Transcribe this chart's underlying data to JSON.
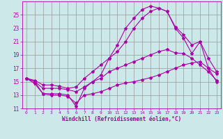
{
  "xlabel": "Windchill (Refroidissement éolien,°C)",
  "bg_color": "#cce8e8",
  "grid_color": "#999999",
  "line_color": "#aa00aa",
  "xlim": [
    -0.5,
    23.5
  ],
  "ylim": [
    11,
    27
  ],
  "yticks": [
    11,
    13,
    15,
    17,
    19,
    21,
    23,
    25
  ],
  "xticks": [
    0,
    1,
    2,
    3,
    4,
    5,
    6,
    7,
    8,
    9,
    10,
    11,
    12,
    13,
    14,
    15,
    16,
    17,
    18,
    19,
    20,
    21,
    22,
    23
  ],
  "hours": [
    0,
    1,
    2,
    3,
    4,
    5,
    6,
    7,
    8,
    9,
    10,
    11,
    12,
    13,
    14,
    15,
    16,
    17,
    18,
    19,
    20,
    21,
    22,
    23
  ],
  "temp_actual": [
    15.5,
    15.0,
    13.2,
    13.2,
    13.2,
    13.0,
    11.3,
    14.0,
    15.0,
    16.0,
    18.5,
    20.5,
    23.0,
    24.5,
    25.8,
    26.3,
    26.0,
    25.5,
    23.0,
    21.5,
    19.2,
    21.0,
    17.0,
    16.2
  ],
  "temp_feel_high": [
    15.5,
    15.2,
    14.5,
    14.5,
    14.3,
    14.0,
    14.2,
    15.5,
    16.5,
    17.5,
    18.5,
    19.5,
    21.0,
    23.0,
    24.5,
    25.5,
    26.0,
    25.5,
    23.2,
    22.0,
    20.5,
    21.0,
    18.5,
    16.5
  ],
  "temp_feel_mid": [
    15.5,
    15.0,
    14.0,
    14.0,
    14.0,
    13.8,
    13.5,
    14.2,
    15.0,
    15.5,
    16.5,
    17.0,
    17.5,
    18.0,
    18.5,
    19.0,
    19.5,
    19.8,
    19.3,
    19.2,
    18.5,
    17.5,
    16.5,
    15.2
  ],
  "temp_feel_low": [
    15.5,
    14.7,
    13.2,
    13.0,
    13.0,
    12.8,
    11.8,
    13.0,
    13.2,
    13.5,
    14.0,
    14.5,
    14.8,
    15.0,
    15.3,
    15.6,
    16.0,
    16.5,
    17.0,
    17.5,
    17.8,
    18.0,
    17.0,
    15.0
  ]
}
